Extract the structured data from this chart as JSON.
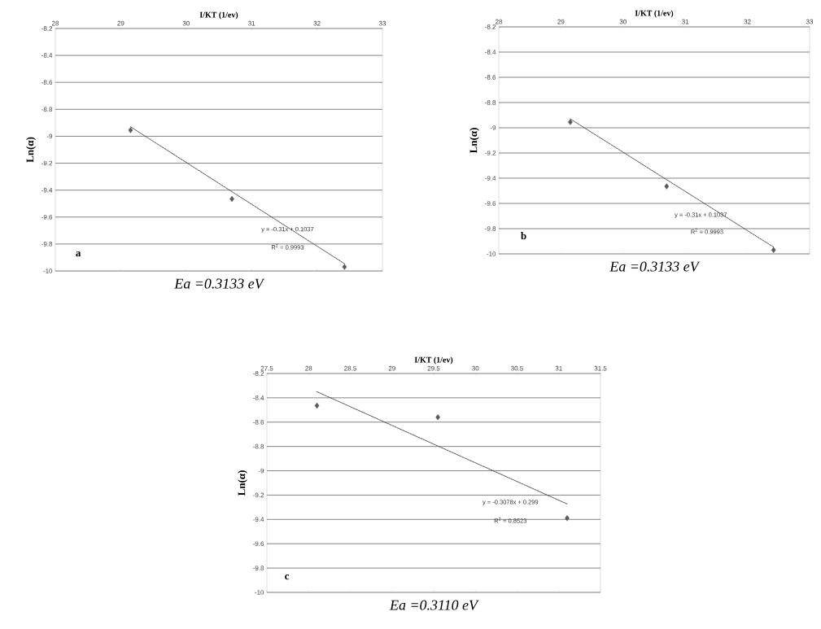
{
  "chart_data": [
    {
      "type": "scatter",
      "title": "I/KT (1/ev)",
      "ylabel": "Ln(α)",
      "xlim": [
        28,
        33
      ],
      "xticks": [
        28,
        29,
        30,
        31,
        32,
        33
      ],
      "ylim": [
        -10,
        -8.2
      ],
      "yticks": [
        -8.2,
        -8.4,
        -8.6,
        -8.8,
        -9,
        -9.2,
        -9.4,
        -9.6,
        -9.8,
        -10
      ],
      "grid": "y",
      "series": [
        {
          "type": "scatter",
          "color": "#5a5a5a",
          "marker": "diamond",
          "x": [
            29.15,
            30.7,
            32.42
          ],
          "values": [
            -8.955,
            -9.465,
            -9.97
          ]
        },
        {
          "type": "line",
          "color": "#404040",
          "line_style": "dashed",
          "marker": "none",
          "x": [
            29.15,
            32.42
          ],
          "values": [
            -8.93,
            -9.946
          ]
        }
      ],
      "annotations": [
        "a",
        "y = -0.31x + 0.1037",
        "R$^{2}$ = 0.9993",
        "Ea =0.3133 eV"
      ]
    },
    {
      "type": "scatter",
      "title": "I/KT (1/ev)",
      "ylabel": "Ln(α)",
      "xlim": [
        28,
        33
      ],
      "xticks": [
        28,
        29,
        30,
        31,
        32,
        33
      ],
      "ylim": [
        -10,
        -8.2
      ],
      "yticks": [
        -8.2,
        -8.4,
        -8.6,
        -8.8,
        -9,
        -9.2,
        -9.4,
        -9.6,
        -9.8,
        -10
      ],
      "grid": "y",
      "series": [
        {
          "type": "scatter",
          "color": "#5a5a5a",
          "marker": "diamond",
          "x": [
            29.15,
            30.7,
            32.42
          ],
          "values": [
            -8.955,
            -9.465,
            -9.97
          ]
        },
        {
          "type": "line",
          "color": "#404040",
          "line_style": "dashed",
          "marker": "none",
          "x": [
            29.15,
            32.42
          ],
          "values": [
            -8.93,
            -9.946
          ]
        }
      ],
      "annotations": [
        "b",
        "y = -0.31x + 0.1037",
        "R$^{2}$ = 0.9993",
        "Ea =0.3133 eV"
      ]
    },
    {
      "type": "scatter",
      "title": "I/KT (1/ev)",
      "ylabel": "Ln(α)",
      "xlim": [
        27.5,
        31.5
      ],
      "xticks": [
        27.5,
        28,
        28.5,
        29,
        29.5,
        30,
        30.5,
        31,
        31.5
      ],
      "ylim": [
        -10,
        -8.2
      ],
      "yticks": [
        -8.2,
        -8.4,
        -8.6,
        -8.8,
        -9,
        -9.2,
        -9.4,
        -9.6,
        -9.8,
        -10
      ],
      "grid": "y",
      "series": [
        {
          "type": "scatter",
          "color": "#5a5a5a",
          "marker": "diamond",
          "x": [
            28.1,
            29.55,
            31.1
          ],
          "values": [
            -8.465,
            -8.56,
            -9.39
          ]
        },
        {
          "type": "line",
          "color": "#404040",
          "line_style": "dashed",
          "marker": "none",
          "x": [
            28.1,
            31.1
          ],
          "values": [
            -8.35,
            -9.273
          ]
        }
      ],
      "annotations": [
        "c",
        "y = -0.3078x + 0.299",
        "R$^{2}$ = 0.8523",
        "Ea =0.3110 eV"
      ]
    }
  ]
}
